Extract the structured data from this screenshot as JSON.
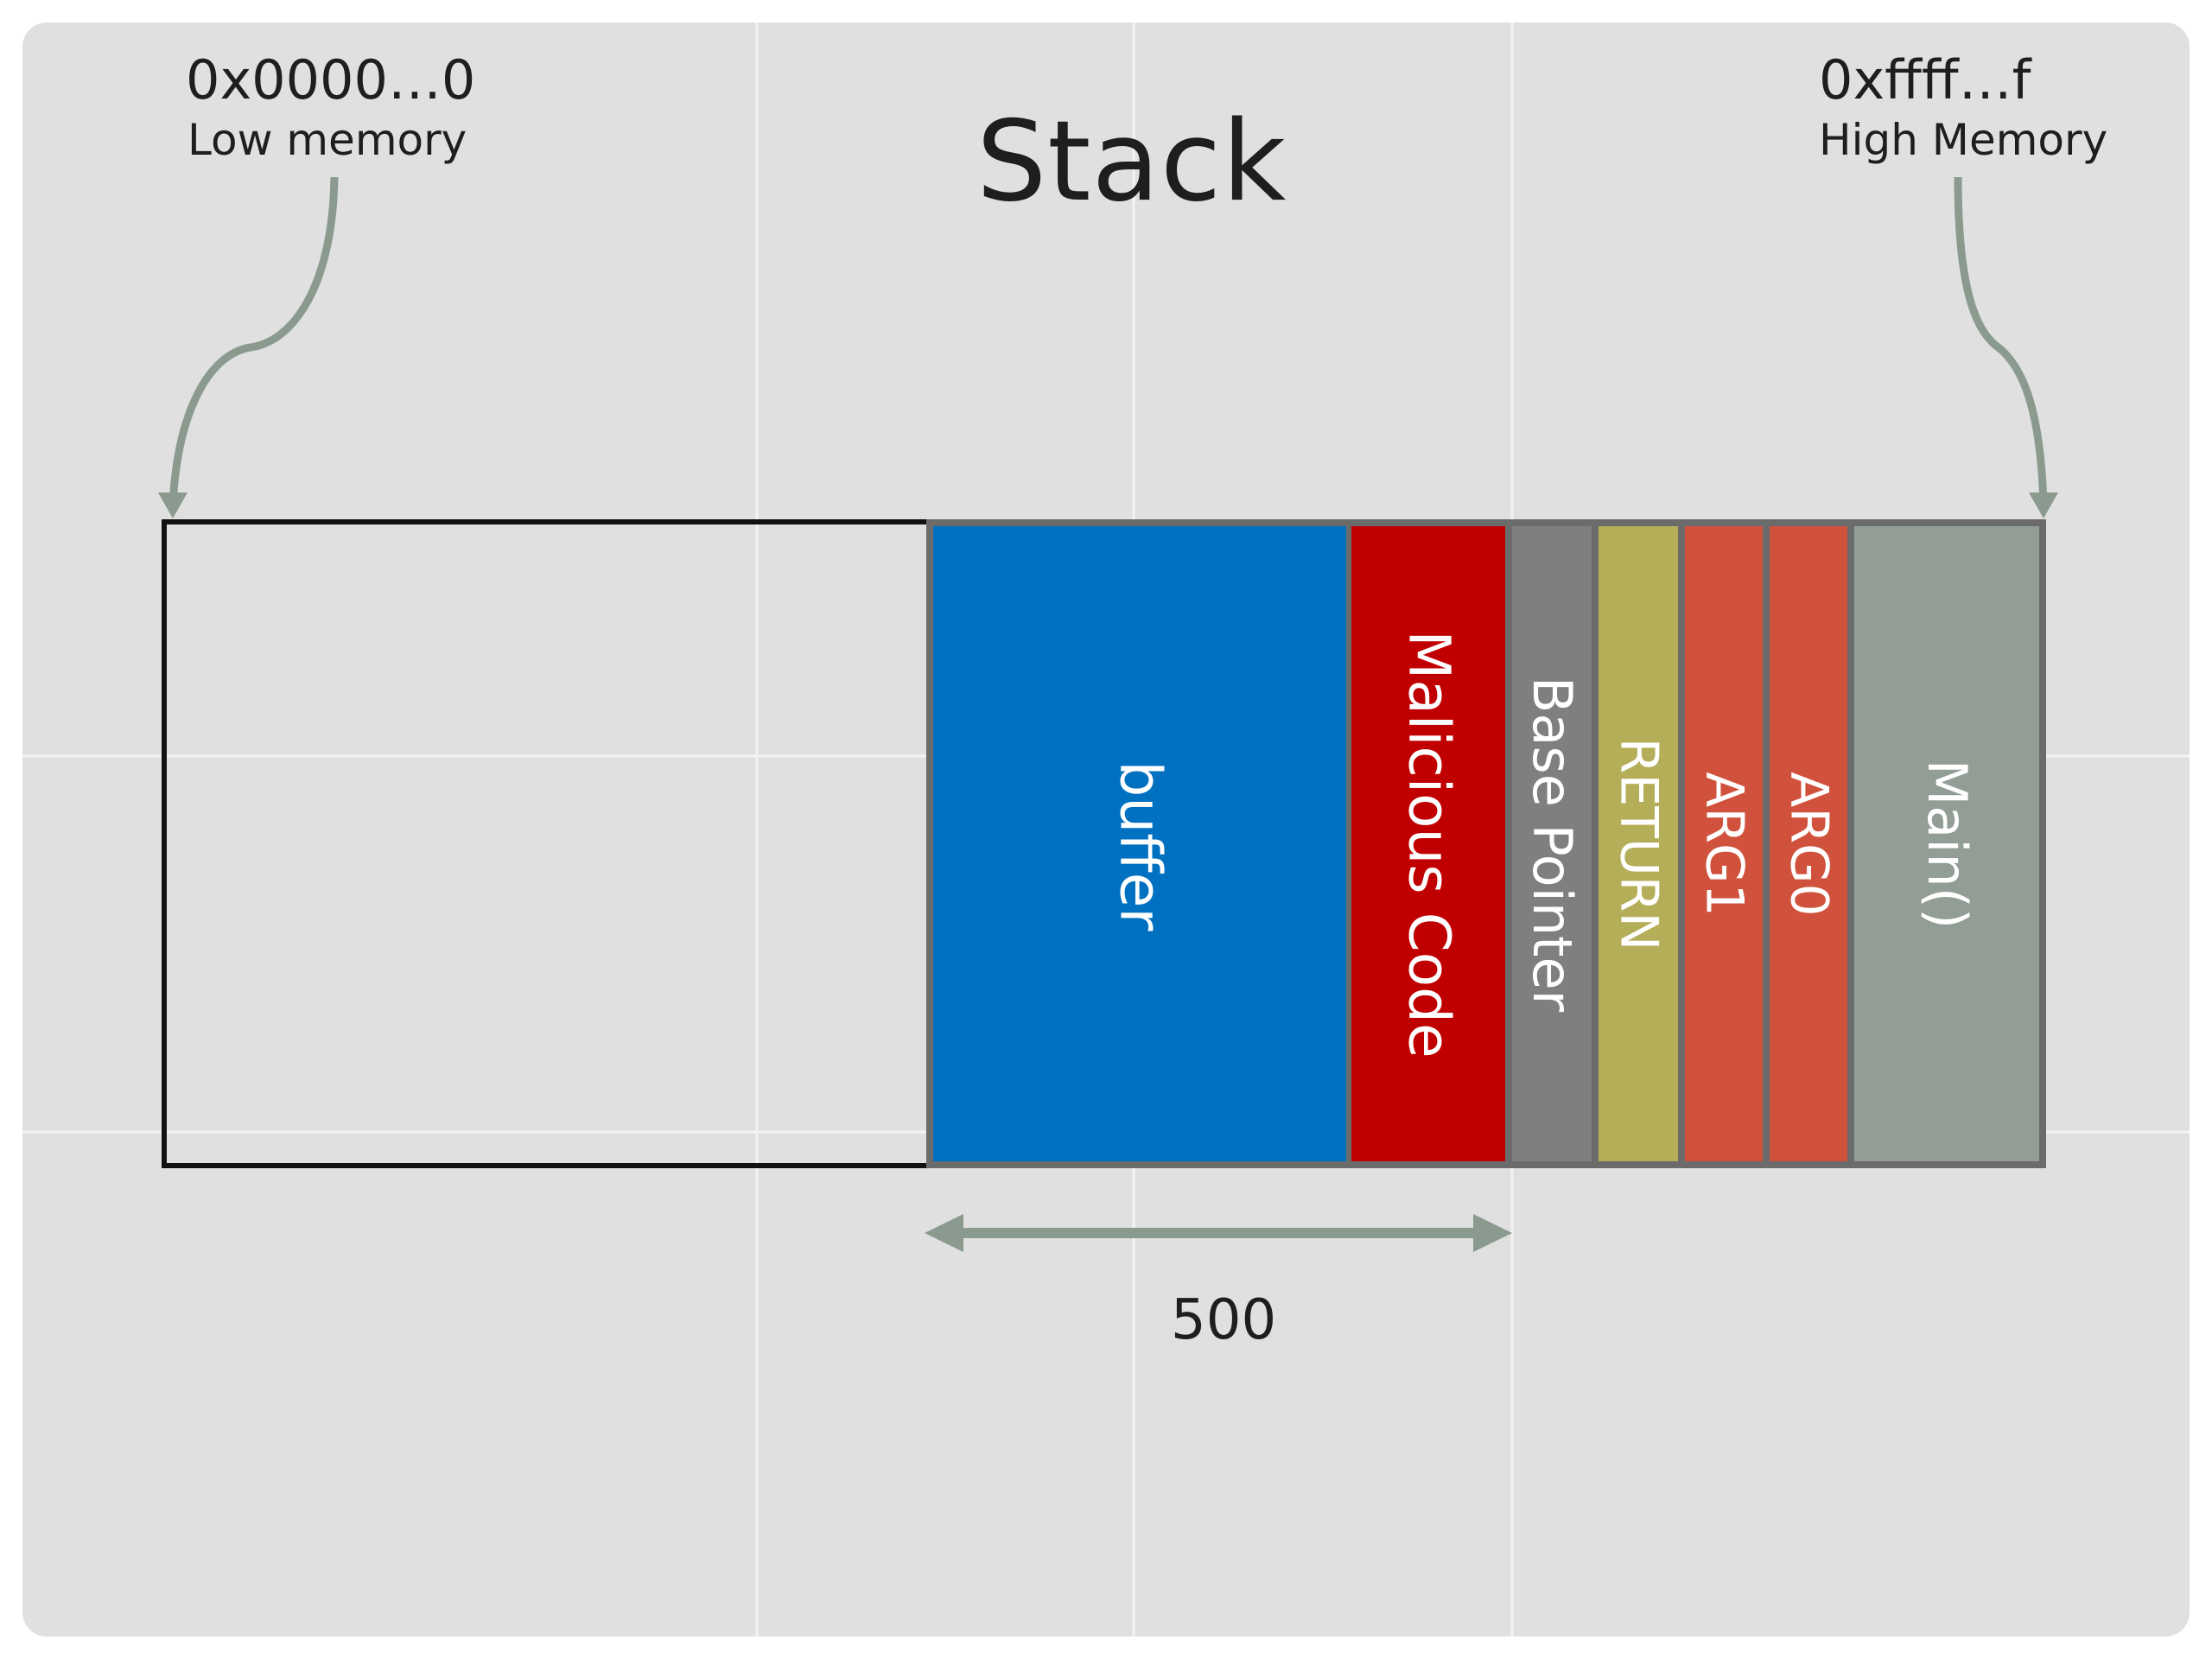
{
  "title": "Stack",
  "low_address": "0x0000…0",
  "low_label": "Low memory",
  "high_address": "0xffff…f",
  "high_label": "High Memory",
  "size_label": "500",
  "segments": [
    {
      "id": "buffer",
      "label": "buffer",
      "color": "#0070c0"
    },
    {
      "id": "malicious-code",
      "label": "Malicious Code",
      "color": "#c00000"
    },
    {
      "id": "base-pointer",
      "label": "Base Pointer",
      "color": "#7f7f7f"
    },
    {
      "id": "return",
      "label": "RETURN",
      "color": "#b5ae58"
    },
    {
      "id": "arg1",
      "label": "ARG1",
      "color": "#d0523c"
    },
    {
      "id": "arg0",
      "label": "ARG0",
      "color": "#d0523c"
    },
    {
      "id": "main",
      "label": "Main()",
      "color": "#919d95"
    }
  ],
  "colors": {
    "background": "#e0e0e0",
    "arrow": "#8a9a8e",
    "outline": "#111111",
    "segment_border": "#6b6b6b"
  }
}
